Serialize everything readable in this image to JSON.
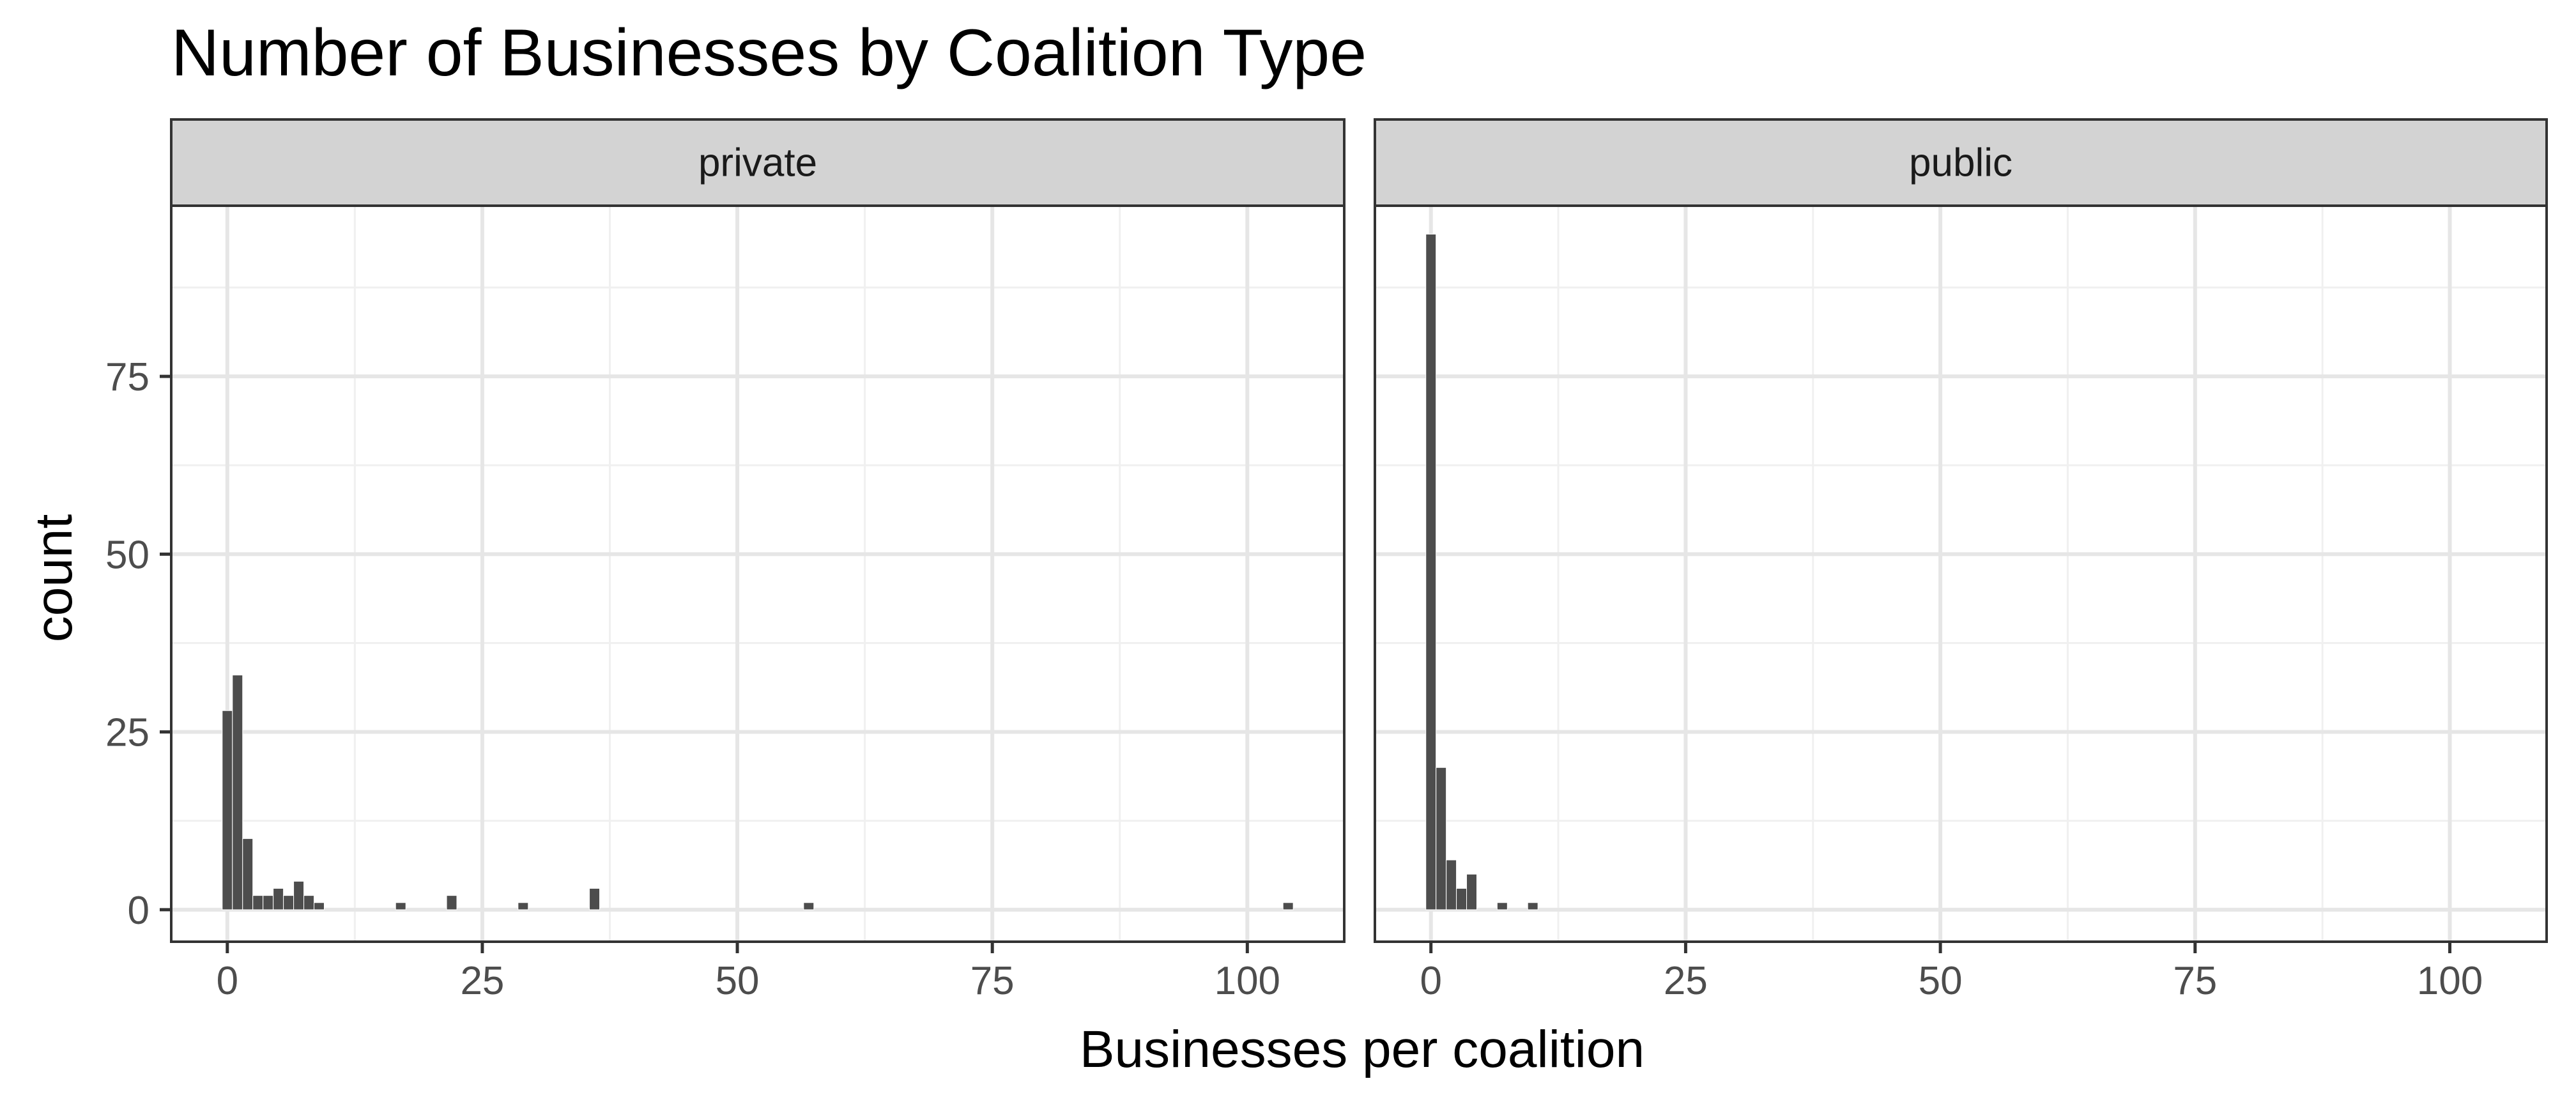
{
  "chart_data": {
    "type": "bar",
    "title": "Number of Businesses by Coalition Type",
    "xlabel": "Businesses per coalition",
    "ylabel": "count",
    "xlim": [
      -5.5,
      109.5
    ],
    "ylim": [
      -4.5,
      99
    ],
    "x_ticks": [
      0,
      25,
      50,
      75,
      100
    ],
    "y_ticks": [
      0,
      25,
      50,
      75
    ],
    "grid": true,
    "bar_color": "#4d4d4d",
    "strip_color": "#d3d3d3",
    "panels": [
      {
        "name": "private",
        "x": [
          0,
          1,
          2,
          3,
          4,
          5,
          6,
          7,
          8,
          9,
          17,
          22,
          29,
          36,
          57,
          104
        ],
        "values": [
          28,
          33,
          10,
          2,
          2,
          3,
          2,
          4,
          2,
          1,
          1,
          2,
          1,
          3,
          1,
          1
        ]
      },
      {
        "name": "public",
        "x": [
          0,
          1,
          2,
          3,
          4,
          7,
          10
        ],
        "values": [
          95,
          20,
          7,
          3,
          5,
          1,
          1
        ]
      }
    ]
  }
}
